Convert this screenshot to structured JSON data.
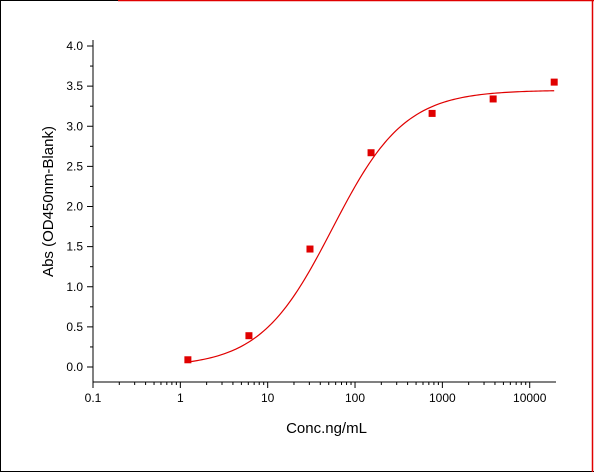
{
  "chart_data": {
    "type": "scatter",
    "title": "",
    "xlabel": "Conc.ng/mL",
    "ylabel": "Abs (OD450nm-Blank)",
    "x_scale": "log",
    "xlim": [
      0.1,
      20000
    ],
    "ylim": [
      0.0,
      4.0
    ],
    "x_ticks": [
      0.1,
      1,
      10,
      100,
      1000,
      10000
    ],
    "x_tick_labels": [
      "0.1",
      "1",
      "10",
      "100",
      "1000",
      "10000"
    ],
    "y_ticks": [
      0.0,
      0.5,
      1.0,
      1.5,
      2.0,
      2.5,
      3.0,
      3.5,
      4.0
    ],
    "y_tick_labels": [
      "0.0",
      "0.5",
      "1.0",
      "1.5",
      "2.0",
      "2.5",
      "3.0",
      "3.5",
      "4.0"
    ],
    "grid": false,
    "legend": "none",
    "series": [
      {
        "x": [
          1.22,
          6.1,
          30.5,
          152.6,
          763,
          3815,
          19073
        ],
        "y": [
          0.09,
          0.39,
          1.47,
          2.67,
          3.16,
          3.34,
          3.55
        ],
        "marker": "square",
        "color": "#e00000"
      }
    ],
    "fit_curve": {
      "model": "4PL",
      "bottom": 0.0,
      "top": 3.45,
      "ec50": 55,
      "hill": 1.05,
      "color": "#e00000"
    }
  },
  "colors": {
    "frame_left_top": "#000000",
    "frame_right": "#e00000",
    "data": "#e00000"
  }
}
